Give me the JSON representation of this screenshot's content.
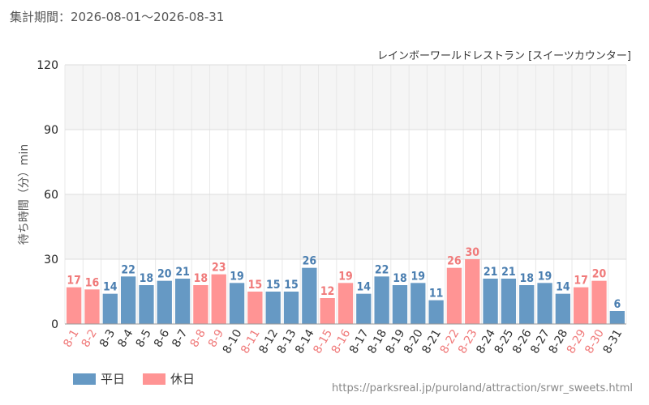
{
  "header": {
    "period": "集計期間：2026-08-01～2026-08-31",
    "source": "レインボーワールドレストラン [スイーツカウンター]"
  },
  "footer": {
    "url": "https://parksreal.jp/puroland/attraction/srwr_sweets.html"
  },
  "colors": {
    "weekday": "#6699c4",
    "holiday": "#ff9494",
    "weekday_text": "#4a7eb0",
    "holiday_text": "#f07a7a"
  },
  "legend": {
    "weekday": "平日",
    "holiday": "休日"
  },
  "chart_data": {
    "type": "bar",
    "ylabel": "待ち時間（分）min",
    "ylim": [
      0,
      120
    ],
    "yticks": [
      0,
      30,
      60,
      90,
      120
    ],
    "grid": true,
    "legend_position": "bottom-left",
    "categories": [
      "8-1",
      "8-2",
      "8-3",
      "8-4",
      "8-5",
      "8-6",
      "8-7",
      "8-8",
      "8-9",
      "8-10",
      "8-11",
      "8-12",
      "8-13",
      "8-14",
      "8-15",
      "8-16",
      "8-17",
      "8-18",
      "8-19",
      "8-20",
      "8-21",
      "8-22",
      "8-23",
      "8-24",
      "8-25",
      "8-26",
      "8-27",
      "8-28",
      "8-29",
      "8-30",
      "8-31"
    ],
    "values": [
      17,
      16,
      14,
      22,
      18,
      20,
      21,
      18,
      23,
      19,
      15,
      15,
      15,
      26,
      12,
      19,
      14,
      22,
      18,
      19,
      11,
      26,
      30,
      21,
      21,
      18,
      19,
      14,
      17,
      20,
      6
    ],
    "day_type": [
      "holiday",
      "holiday",
      "weekday",
      "weekday",
      "weekday",
      "weekday",
      "weekday",
      "holiday",
      "holiday",
      "weekday",
      "holiday",
      "weekday",
      "weekday",
      "weekday",
      "holiday",
      "holiday",
      "weekday",
      "weekday",
      "weekday",
      "weekday",
      "weekday",
      "holiday",
      "holiday",
      "weekday",
      "weekday",
      "weekday",
      "weekday",
      "weekday",
      "holiday",
      "holiday",
      "weekday"
    ]
  }
}
